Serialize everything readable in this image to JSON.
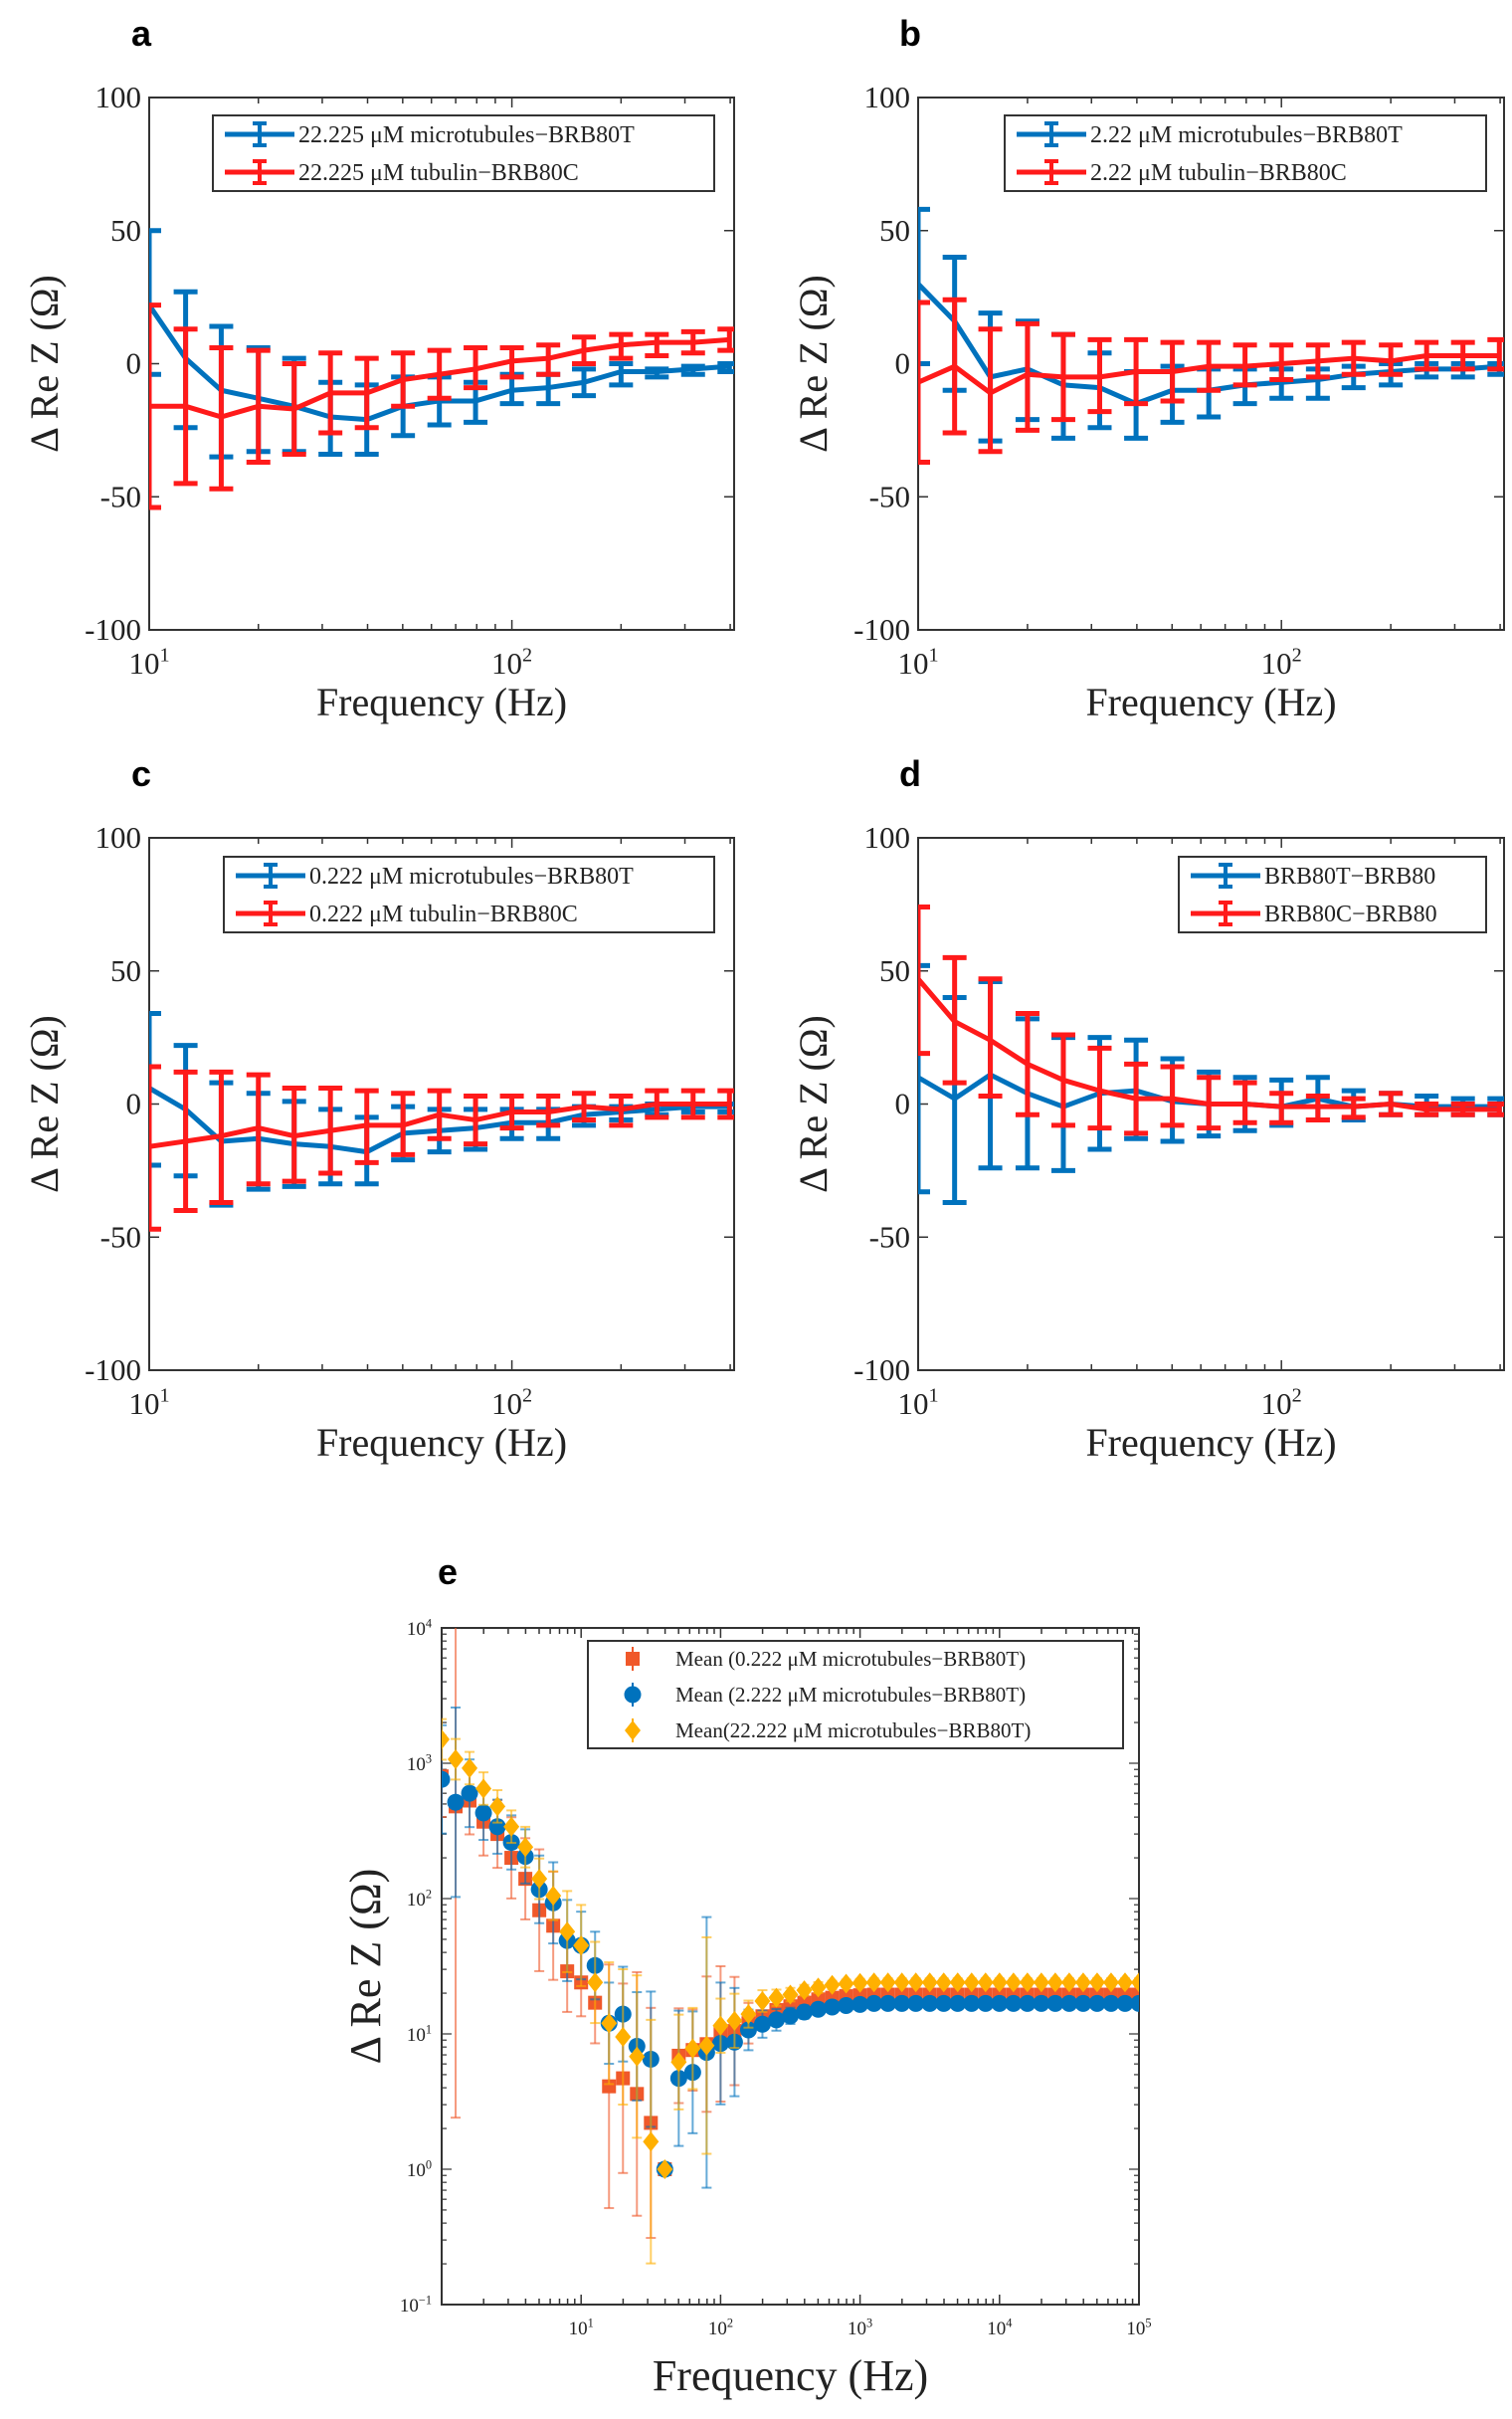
{
  "chart_data": [
    {
      "panel": "a",
      "type": "line",
      "xscale": "log",
      "xlim": [
        10,
        410
      ],
      "ylim": [
        -100,
        100
      ],
      "xlabel": "Frequency (Hz)",
      "ylabel": "Δ Re Z (Ω)",
      "yticks": [
        -100,
        -50,
        0,
        50,
        100
      ],
      "yticklabels": [
        "-100",
        "-50",
        "0",
        "50",
        "100"
      ],
      "xticks": [
        10,
        100
      ],
      "xticklabels": [
        [
          "10",
          "1"
        ],
        [
          "10",
          "2"
        ]
      ],
      "legend_position": "top-right",
      "x": [
        10,
        12.6,
        15.8,
        20,
        25.1,
        31.6,
        39.8,
        50.1,
        63.1,
        79.4,
        100,
        126,
        158,
        200,
        251,
        316,
        398
      ],
      "series": [
        {
          "name": "22.225 μM microtubules−BRB80T",
          "color": "#0072BD",
          "y": [
            22,
            2,
            -10,
            -13,
            -16,
            -20,
            -21,
            -16,
            -14,
            -14,
            -10,
            -9,
            -7,
            -3,
            -3,
            -2,
            -1
          ],
          "high": [
            50,
            27,
            14,
            6,
            2,
            -7,
            -8,
            -5,
            -5,
            -7,
            -4,
            -4,
            -2,
            0,
            -2,
            -1,
            0
          ],
          "low": [
            -4,
            -24,
            -35,
            -33,
            -33,
            -34,
            -34,
            -27,
            -23,
            -22,
            -15,
            -15,
            -12,
            -8,
            -5,
            -4,
            -3
          ]
        },
        {
          "name": "22.225 μM tubulin−BRB80C",
          "color": "#FF1A1A",
          "y": [
            -16,
            -16,
            -20,
            -16,
            -17,
            -11,
            -11,
            -6,
            -4,
            -2,
            1,
            2,
            5,
            7,
            8,
            8,
            9
          ],
          "high": [
            22,
            13,
            6,
            5,
            0,
            4,
            2,
            4,
            5,
            6,
            6,
            7,
            10,
            11,
            11,
            12,
            13
          ],
          "low": [
            -54,
            -45,
            -47,
            -37,
            -34,
            -26,
            -24,
            -16,
            -13,
            -9,
            -5,
            -4,
            0,
            2,
            3,
            4,
            5
          ]
        }
      ]
    },
    {
      "panel": "b",
      "type": "line",
      "xscale": "log",
      "xlim": [
        10,
        410
      ],
      "ylim": [
        -100,
        100
      ],
      "xlabel": "Frequency (Hz)",
      "ylabel": "Δ Re Z (Ω)",
      "yticks": [
        -100,
        -50,
        0,
        50,
        100
      ],
      "yticklabels": [
        "-100",
        "-50",
        "0",
        "50",
        "100"
      ],
      "xticks": [
        10,
        100
      ],
      "xticklabels": [
        [
          "10",
          "1"
        ],
        [
          "10",
          "2"
        ]
      ],
      "legend_position": "top-right",
      "x": [
        10,
        12.6,
        15.8,
        20,
        25.1,
        31.6,
        39.8,
        50.1,
        63.1,
        79.4,
        100,
        126,
        158,
        200,
        251,
        316,
        398
      ],
      "series": [
        {
          "name": "2.22 μM microtubules−BRB80T",
          "color": "#0072BD",
          "y": [
            30,
            16,
            -5,
            -2,
            -8,
            -9,
            -15,
            -10,
            -10,
            -8,
            -7,
            -6,
            -4,
            -3,
            -2,
            -2,
            -1
          ],
          "high": [
            58,
            40,
            19,
            16,
            11,
            4,
            -3,
            -1,
            -2,
            -2,
            -2,
            -2,
            -1,
            0,
            0,
            0,
            0
          ],
          "low": [
            0,
            -10,
            -29,
            -21,
            -28,
            -24,
            -28,
            -22,
            -20,
            -15,
            -13,
            -13,
            -9,
            -8,
            -5,
            -5,
            -4
          ]
        },
        {
          "name": "2.22 μM tubulin−BRB80C",
          "color": "#FF1A1A",
          "y": [
            -7,
            -1,
            -11,
            -4,
            -5,
            -5,
            -3,
            -3,
            -1,
            -1,
            0,
            1,
            2,
            1,
            3,
            3,
            3
          ],
          "high": [
            23,
            24,
            13,
            15,
            11,
            9,
            9,
            8,
            8,
            7,
            7,
            7,
            8,
            7,
            8,
            8,
            9
          ],
          "low": [
            -37,
            -26,
            -33,
            -25,
            -21,
            -18,
            -15,
            -14,
            -10,
            -8,
            -6,
            -5,
            -4,
            -4,
            -2,
            -2,
            -2
          ]
        }
      ]
    },
    {
      "panel": "c",
      "type": "line",
      "xscale": "log",
      "xlim": [
        10,
        410
      ],
      "ylim": [
        -100,
        100
      ],
      "xlabel": "Frequency (Hz)",
      "ylabel": "Δ Re Z (Ω)",
      "yticks": [
        -100,
        -50,
        0,
        50,
        100
      ],
      "yticklabels": [
        "-100",
        "-50",
        "0",
        "50",
        "100"
      ],
      "xticks": [
        10,
        100
      ],
      "xticklabels": [
        [
          "10",
          "1"
        ],
        [
          "10",
          "2"
        ]
      ],
      "legend_position": "top-right",
      "x": [
        10,
        12.6,
        15.8,
        20,
        25.1,
        31.6,
        39.8,
        50.1,
        63.1,
        79.4,
        100,
        126,
        158,
        200,
        251,
        316,
        398
      ],
      "series": [
        {
          "name": "0.222 μM microtubules−BRB80T",
          "color": "#0072BD",
          "y": [
            6,
            -2,
            -14,
            -13,
            -15,
            -16,
            -18,
            -11,
            -10,
            -9,
            -7,
            -7,
            -4,
            -3,
            -2,
            -1,
            -1
          ],
          "high": [
            34,
            22,
            8,
            4,
            1,
            -2,
            -5,
            -1,
            -2,
            -2,
            -2,
            -2,
            -1,
            -1,
            0,
            0,
            0
          ],
          "low": [
            -23,
            -27,
            -38,
            -32,
            -31,
            -30,
            -30,
            -21,
            -18,
            -17,
            -13,
            -13,
            -8,
            -6,
            -4,
            -3,
            -3
          ]
        },
        {
          "name": "0.222 μM tubulin−BRB80C",
          "color": "#FF1A1A",
          "y": [
            -16,
            -14,
            -12,
            -9,
            -12,
            -10,
            -8,
            -8,
            -4,
            -6,
            -3,
            -3,
            -1,
            -2,
            0,
            0,
            0
          ],
          "high": [
            14,
            12,
            12,
            11,
            6,
            6,
            5,
            4,
            5,
            3,
            3,
            3,
            4,
            3,
            5,
            5,
            5
          ],
          "low": [
            -47,
            -40,
            -37,
            -30,
            -29,
            -26,
            -22,
            -19,
            -13,
            -15,
            -9,
            -8,
            -6,
            -8,
            -5,
            -5,
            -5
          ]
        }
      ]
    },
    {
      "panel": "d",
      "type": "line",
      "xscale": "log",
      "xlim": [
        10,
        410
      ],
      "ylim": [
        -100,
        100
      ],
      "xlabel": "Frequency (Hz)",
      "ylabel": "Δ Re Z (Ω)",
      "yticks": [
        -100,
        -50,
        0,
        50,
        100
      ],
      "yticklabels": [
        "-100",
        "-50",
        "0",
        "50",
        "100"
      ],
      "xticks": [
        10,
        100
      ],
      "xticklabels": [
        [
          "10",
          "1"
        ],
        [
          "10",
          "2"
        ]
      ],
      "legend_position": "top-right",
      "x": [
        10,
        12.6,
        15.8,
        20,
        25.1,
        31.6,
        39.8,
        50.1,
        63.1,
        79.4,
        100,
        126,
        158,
        200,
        251,
        316,
        398
      ],
      "series": [
        {
          "name": "BRB80T−BRB80",
          "color": "#0072BD",
          "y": [
            10,
            2,
            11,
            4,
            -1,
            4,
            5,
            1,
            0,
            0,
            -1,
            2,
            -1,
            0,
            -1,
            -1,
            -1
          ],
          "high": [
            52,
            40,
            46,
            32,
            25,
            25,
            24,
            17,
            12,
            10,
            9,
            10,
            5,
            4,
            3,
            2,
            2
          ],
          "low": [
            -33,
            -37,
            -24,
            -24,
            -25,
            -17,
            -13,
            -14,
            -12,
            -10,
            -8,
            -6,
            -6,
            -4,
            -4,
            -4,
            -4
          ]
        },
        {
          "name": "BRB80C−BRB80",
          "color": "#FF1A1A",
          "y": [
            47,
            31,
            24,
            15,
            9,
            5,
            2,
            2,
            0,
            0,
            -1,
            -1,
            -1,
            0,
            -2,
            -2,
            -2
          ],
          "high": [
            74,
            55,
            47,
            34,
            26,
            21,
            15,
            14,
            10,
            8,
            4,
            3,
            2,
            4,
            0,
            0,
            0
          ],
          "low": [
            19,
            8,
            3,
            -4,
            -8,
            -9,
            -11,
            -8,
            -9,
            -7,
            -7,
            -6,
            -5,
            -4,
            -4,
            -4,
            -4
          ]
        }
      ]
    },
    {
      "panel": "e",
      "type": "scatter",
      "xscale": "log",
      "yscale": "log",
      "xlim": [
        1,
        100000
      ],
      "ylim": [
        0.1,
        10000
      ],
      "xlabel": "Frequency (Hz)",
      "ylabel": "Δ Re Z (Ω)",
      "yticks": [
        0.1,
        1,
        10,
        100,
        1000,
        10000
      ],
      "yticklabels": [
        [
          "10",
          "−1"
        ],
        [
          "10",
          "0"
        ],
        [
          "10",
          "1"
        ],
        [
          "10",
          "2"
        ],
        [
          "10",
          "3"
        ],
        [
          "10",
          "4"
        ]
      ],
      "xticks": [
        10,
        100,
        1000,
        10000,
        100000
      ],
      "xticklabels": [
        [
          "10",
          "1"
        ],
        [
          "10",
          "2"
        ],
        [
          "10",
          "3"
        ],
        [
          "10",
          "4"
        ],
        [
          "10",
          "5"
        ]
      ],
      "legend_position": "top-right",
      "x_log10_start": 0,
      "x_log10_step": 0.1,
      "n_points": 51,
      "series": [
        {
          "name": "Mean (0.222 μM microtubules−BRB80T)",
          "color": "#F0582A",
          "marker": "square",
          "y": [
            800,
            480,
            530,
            370,
            300,
            200,
            140,
            82,
            63,
            29,
            24,
            17,
            4.1,
            4.7,
            3.6,
            2.2,
            1.0,
            6.9,
            7.6,
            8.4,
            10,
            10.5,
            12,
            13.5,
            15,
            16,
            17,
            18,
            18.5,
            19,
            19.3,
            19.5,
            19.5,
            19.5,
            19.5,
            19.5,
            19.5,
            19.5,
            19.5,
            19.5,
            19.5,
            19.5,
            19.5,
            19.5,
            19.5,
            19.5,
            19.5,
            19.5,
            19.5,
            19.5,
            19.5
          ],
          "err_dex": [
            0.3,
            2.3,
            0.25,
            0.25,
            0.25,
            0.3,
            0.3,
            0.45,
            0.4,
            0.3,
            0.25,
            0.3,
            0.9,
            0.7,
            0.9,
            0.85,
            0,
            0.35,
            0.3,
            0.5,
            0.5,
            0.4,
            0.15,
            0.1,
            0.08,
            0.06,
            0.05,
            0.04,
            0.04,
            0.03,
            0.03,
            0.03,
            0.03,
            0.03,
            0.03,
            0.03,
            0.03,
            0.03,
            0.03,
            0.03,
            0.03,
            0.03,
            0.03,
            0.03,
            0.03,
            0.03,
            0.03,
            0.03,
            0.03,
            0.03,
            0.03
          ]
        },
        {
          "name": "Mean (2.222 μM microtubules−BRB80T)",
          "color": "#0072BD",
          "marker": "circle",
          "y": [
            760,
            515,
            600,
            430,
            340,
            260,
            205,
            117,
            93,
            49,
            45,
            32,
            12,
            14,
            8.1,
            6.5,
            1.0,
            4.7,
            5.2,
            7.3,
            8.5,
            8.7,
            10.7,
            11.8,
            12.7,
            13.6,
            14.5,
            15.2,
            15.8,
            16.2,
            16.5,
            16.8,
            16.8,
            16.8,
            16.8,
            16.8,
            16.8,
            16.8,
            16.8,
            16.8,
            16.8,
            16.8,
            16.8,
            16.8,
            16.8,
            16.8,
            16.8,
            16.8,
            16.8,
            16.8,
            16.8
          ],
          "err_dex": [
            0.4,
            0.7,
            0.25,
            0.2,
            0.2,
            0.2,
            0.2,
            0.25,
            0.3,
            0.3,
            0.25,
            0.25,
            0.3,
            0.35,
            0.4,
            0.5,
            0,
            0.5,
            0.45,
            1.0,
            0.45,
            0.4,
            0.15,
            0.1,
            0.08,
            0.06,
            0.05,
            0.04,
            0.04,
            0.03,
            0.03,
            0.03,
            0.03,
            0.03,
            0.03,
            0.03,
            0.03,
            0.03,
            0.03,
            0.03,
            0.03,
            0.03,
            0.03,
            0.03,
            0.03,
            0.03,
            0.03,
            0.03,
            0.03,
            0.03,
            0.03
          ]
        },
        {
          "name": "Mean(22.222 μM microtubules−BRB80T)",
          "color": "#FFB000",
          "marker": "diamond",
          "y": [
            1500,
            1070,
            920,
            650,
            480,
            340,
            240,
            140,
            105,
            57,
            45,
            24,
            12,
            9.5,
            6.8,
            1.6,
            1.0,
            6.2,
            7.8,
            8.2,
            11.5,
            12.5,
            14,
            17.5,
            18.5,
            19.5,
            21,
            22,
            23,
            23.5,
            23.8,
            24,
            24,
            24,
            24,
            24,
            24,
            24,
            24,
            24,
            24,
            24,
            24,
            24,
            24,
            24,
            24,
            24,
            24,
            24,
            24
          ],
          "err_dex": [
            0.15,
            0.15,
            0.12,
            0.12,
            0.12,
            0.12,
            0.15,
            0.15,
            0.18,
            0.3,
            0.3,
            0.3,
            0.45,
            0.5,
            0.6,
            0.9,
            0,
            0.35,
            0.3,
            0.8,
            0.2,
            0.2,
            0.1,
            0.08,
            0.06,
            0.05,
            0.04,
            0.04,
            0.03,
            0.03,
            0.03,
            0.03,
            0.03,
            0.03,
            0.03,
            0.03,
            0.03,
            0.03,
            0.03,
            0.03,
            0.03,
            0.03,
            0.03,
            0.03,
            0.03,
            0.03,
            0.03,
            0.03,
            0.03,
            0.03,
            0.03
          ]
        }
      ]
    }
  ]
}
